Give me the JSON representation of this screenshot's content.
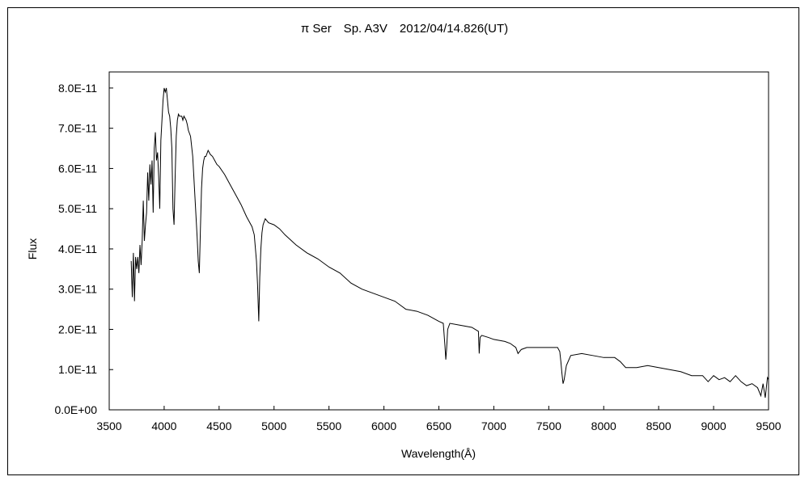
{
  "chart_data": {
    "type": "line",
    "title": "π Ser　Sp. A3V　2012/04/14.826(UT)",
    "xlabel": "Wavelength(Å)",
    "ylabel": "Flux",
    "xlim": [
      3500,
      9500
    ],
    "ylim": [
      0,
      8.4e-11
    ],
    "x_ticks": [
      3500,
      4000,
      4500,
      5000,
      5500,
      6000,
      6500,
      7000,
      7500,
      8000,
      8500,
      9000,
      9500
    ],
    "y_ticks": [
      0,
      1e-11,
      2e-11,
      3e-11,
      4e-11,
      5e-11,
      6e-11,
      7e-11,
      8e-11
    ],
    "x_tick_labels": [
      "3500",
      "4000",
      "4500",
      "5000",
      "5500",
      "6000",
      "6500",
      "7000",
      "7500",
      "8000",
      "8500",
      "9000",
      "9500"
    ],
    "y_tick_labels": [
      "0.0E+00",
      "1.0E-11",
      "2.0E-11",
      "3.0E-11",
      "4.0E-11",
      "5.0E-11",
      "6.0E-11",
      "7.0E-11",
      "8.0E-11"
    ],
    "grid": false,
    "legend": "none",
    "line_color": "#000000",
    "series": [
      {
        "values_unit": "1e-11",
        "x": [
          3700,
          3710,
          3720,
          3730,
          3740,
          3750,
          3760,
          3770,
          3780,
          3790,
          3800,
          3810,
          3820,
          3830,
          3840,
          3850,
          3860,
          3870,
          3880,
          3890,
          3900,
          3910,
          3920,
          3930,
          3940,
          3950,
          3960,
          3970,
          3980,
          3990,
          4000,
          4010,
          4020,
          4030,
          4040,
          4050,
          4060,
          4070,
          4080,
          4090,
          4100,
          4110,
          4120,
          4130,
          4140,
          4150,
          4160,
          4170,
          4180,
          4190,
          4200,
          4210,
          4220,
          4240,
          4260,
          4280,
          4300,
          4310,
          4320,
          4330,
          4340,
          4350,
          4360,
          4370,
          4380,
          4400,
          4420,
          4440,
          4460,
          4480,
          4500,
          4550,
          4600,
          4650,
          4700,
          4750,
          4800,
          4820,
          4840,
          4850,
          4861,
          4870,
          4880,
          4890,
          4900,
          4920,
          4950,
          5000,
          5050,
          5100,
          5200,
          5300,
          5400,
          5500,
          5600,
          5700,
          5800,
          5900,
          6000,
          6100,
          6200,
          6300,
          6400,
          6500,
          6540,
          6555,
          6563,
          6570,
          6580,
          6600,
          6700,
          6800,
          6860,
          6867,
          6875,
          6890,
          6950,
          7000,
          7100,
          7150,
          7200,
          7220,
          7250,
          7300,
          7400,
          7500,
          7580,
          7600,
          7610,
          7620,
          7630,
          7640,
          7660,
          7700,
          7800,
          7900,
          8000,
          8100,
          8150,
          8200,
          8300,
          8400,
          8500,
          8600,
          8700,
          8800,
          8900,
          8950,
          9000,
          9050,
          9100,
          9150,
          9200,
          9250,
          9300,
          9350,
          9400,
          9430,
          9450,
          9470,
          9490,
          9500
        ],
        "values": [
          3.7,
          2.8,
          3.9,
          2.7,
          3.8,
          3.5,
          3.8,
          3.4,
          4.1,
          3.6,
          4.2,
          5.2,
          4.2,
          4.6,
          4.9,
          5.9,
          5.2,
          6.1,
          5.6,
          6.2,
          4.9,
          6.5,
          6.9,
          6.2,
          6.4,
          5.8,
          5.0,
          6.7,
          7.2,
          7.7,
          8.0,
          7.9,
          8.0,
          7.7,
          7.4,
          7.3,
          7.0,
          6.5,
          5.0,
          4.6,
          5.8,
          6.8,
          7.2,
          7.35,
          7.3,
          7.3,
          7.3,
          7.2,
          7.3,
          7.25,
          7.2,
          7.1,
          6.95,
          6.8,
          6.3,
          5.3,
          4.3,
          3.7,
          3.4,
          4.5,
          5.5,
          6.0,
          6.2,
          6.3,
          6.3,
          6.45,
          6.35,
          6.3,
          6.2,
          6.1,
          6.05,
          5.85,
          5.6,
          5.35,
          5.1,
          4.8,
          4.55,
          4.35,
          3.7,
          3.1,
          2.2,
          3.3,
          4.0,
          4.4,
          4.6,
          4.75,
          4.65,
          4.6,
          4.5,
          4.35,
          4.1,
          3.9,
          3.75,
          3.55,
          3.4,
          3.15,
          3.0,
          2.9,
          2.8,
          2.7,
          2.5,
          2.45,
          2.35,
          2.2,
          2.15,
          1.6,
          1.25,
          1.5,
          2.0,
          2.15,
          2.1,
          2.05,
          1.95,
          1.4,
          1.8,
          1.85,
          1.8,
          1.75,
          1.7,
          1.65,
          1.55,
          1.4,
          1.5,
          1.55,
          1.55,
          1.55,
          1.55,
          1.45,
          1.2,
          0.9,
          0.65,
          0.75,
          1.1,
          1.35,
          1.4,
          1.35,
          1.3,
          1.3,
          1.2,
          1.05,
          1.05,
          1.1,
          1.05,
          1.0,
          0.95,
          0.85,
          0.85,
          0.7,
          0.85,
          0.75,
          0.8,
          0.7,
          0.85,
          0.7,
          0.6,
          0.65,
          0.55,
          0.35,
          0.65,
          0.3,
          0.8,
          0.75
        ]
      }
    ]
  }
}
